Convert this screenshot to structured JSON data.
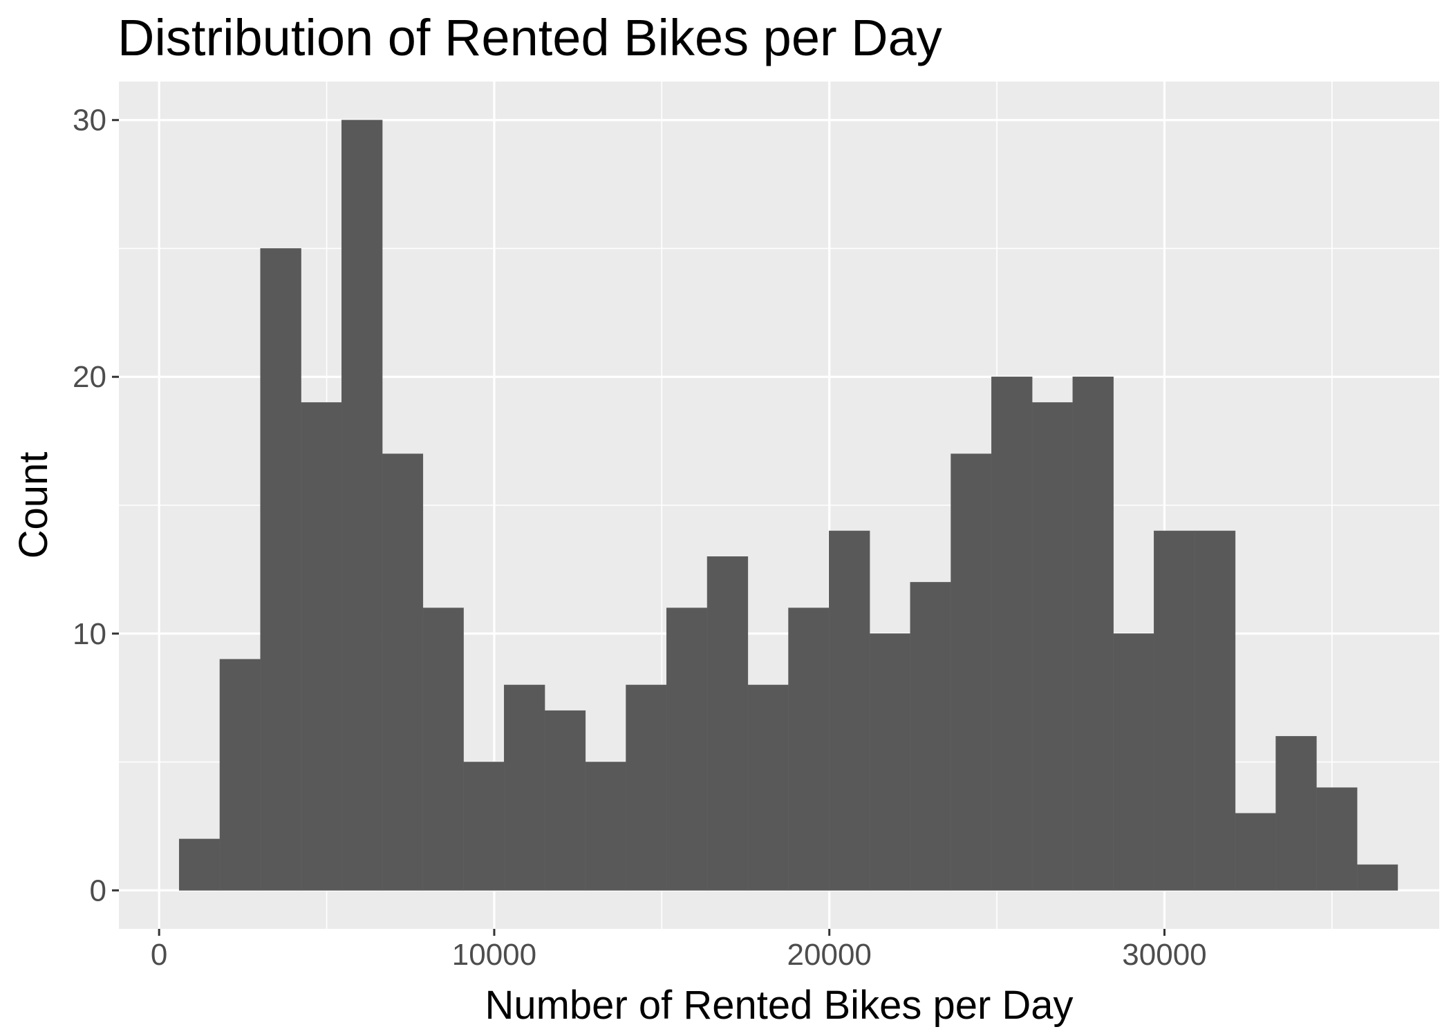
{
  "chart_data": {
    "type": "bar",
    "title": "Distribution of Rented Bikes per Day",
    "xlabel": "Number of Rented Bikes per Day",
    "ylabel": "Count",
    "xlim": [
      -1200,
      38200
    ],
    "ylim": [
      -1.5,
      31.5
    ],
    "x_ticks": [
      0,
      10000,
      20000,
      30000
    ],
    "x_tick_labels": [
      "0",
      "10000",
      "20000",
      "30000"
    ],
    "x_minor_ticks": [
      5000,
      15000,
      25000,
      35000
    ],
    "y_ticks": [
      0,
      10,
      20,
      30
    ],
    "y_tick_labels": [
      "0",
      "10",
      "20",
      "30"
    ],
    "y_minor_ticks": [
      5,
      15,
      25
    ],
    "bin_start": 600,
    "bin_width": 1212,
    "counts": [
      2,
      9,
      25,
      19,
      30,
      17,
      11,
      5,
      8,
      7,
      5,
      8,
      11,
      13,
      8,
      11,
      14,
      10,
      12,
      17,
      20,
      19,
      20,
      10,
      14,
      14,
      3,
      6,
      4,
      1
    ],
    "bar_color": "#595959",
    "panel_color": "#ebebeb",
    "grid": true,
    "legend": "none"
  }
}
